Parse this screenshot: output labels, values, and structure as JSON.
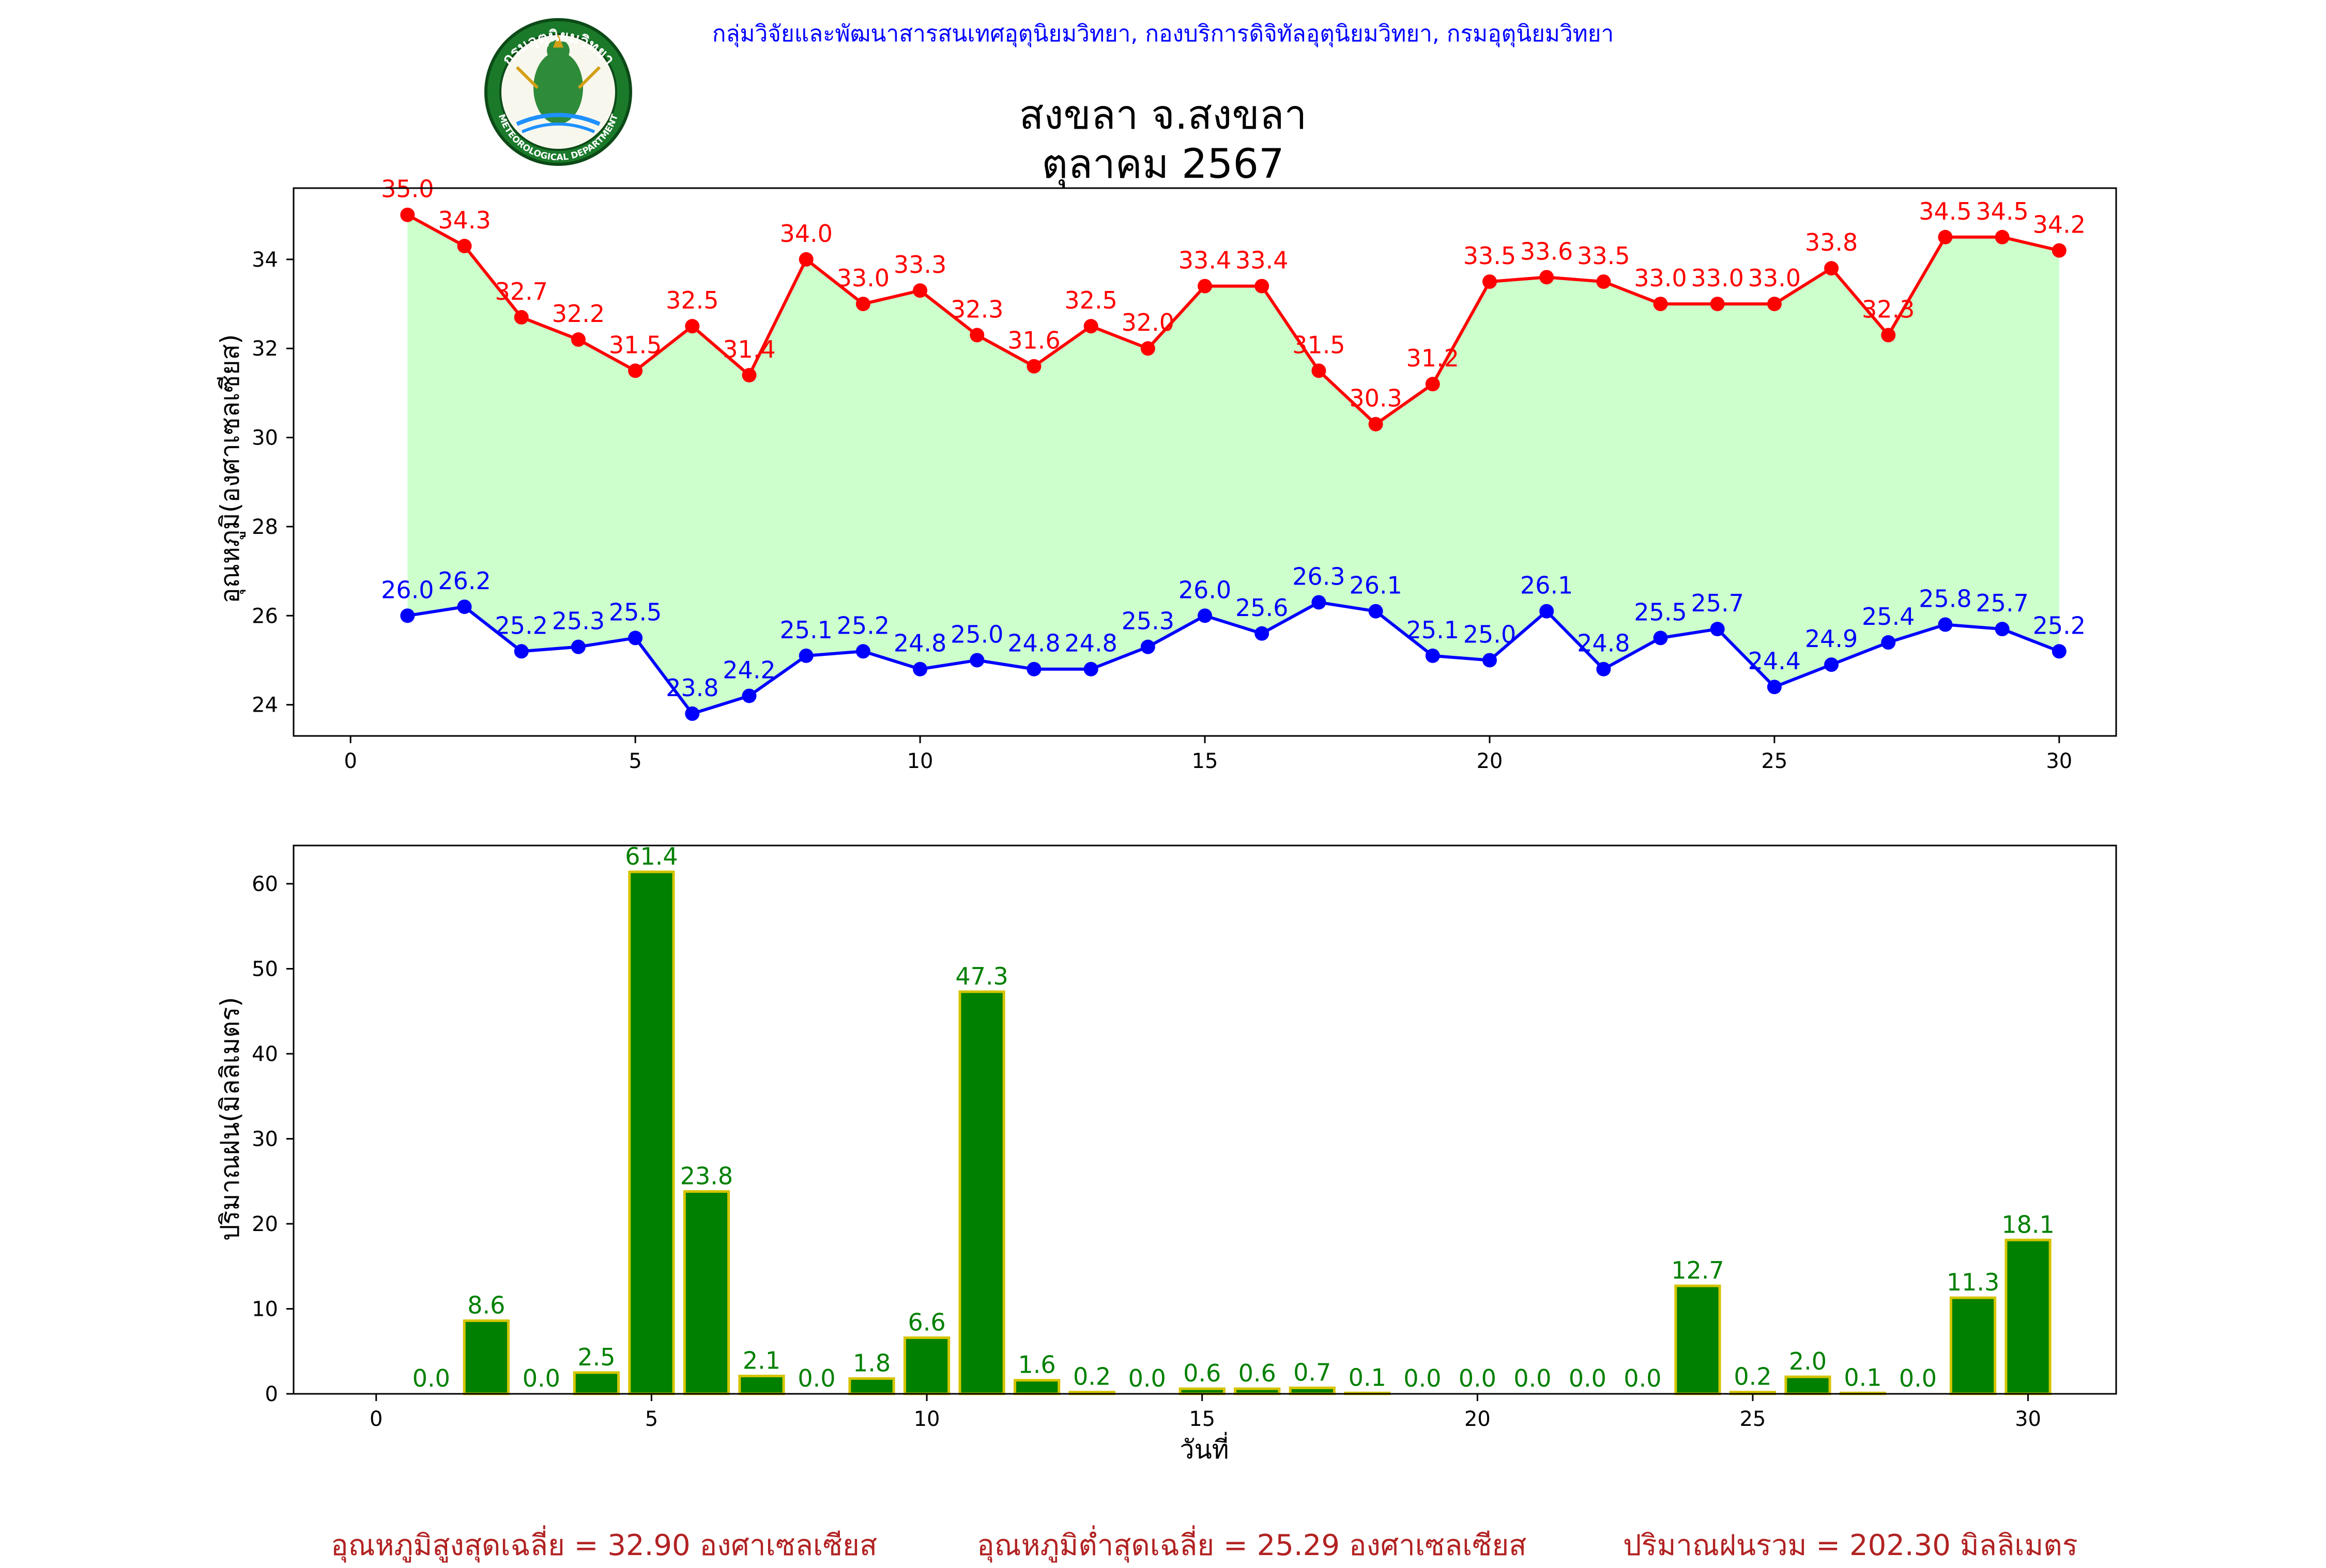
{
  "header": {
    "agency": "กลุ่มวิจัยและพัฒนาสารสนเทศอุตุนิยมวิทยา, กองบริการดิจิทัลอุตุนิยมวิทยา, กรมอุตุนิยมวิทยา",
    "title_line1": "สงขลา จ.สงขลา",
    "title_line2": "ตุลาคม 2567",
    "logo_top_text": "กรมอุตุนิยมวิทยา",
    "logo_bottom_text": "METEOROLOGICAL DEPARTMENT"
  },
  "summary": {
    "avg_max": "อุณหภูมิสูงสุดเฉลี่ย = 32.90 องศาเซลเซียส",
    "avg_min": "อุณหภูมิต่ำสุดเฉลี่ย = 25.29 องศาเซลเซียส",
    "total_rain": "ปริมาณฝนรวม = 202.30 มิลลิเมตร"
  },
  "colors": {
    "max_line": "#ff0000",
    "min_line": "#0000ff",
    "fill": "#ccffcc",
    "bar": "#008000",
    "bar_edge": "#d4c400",
    "bar_label": "#008000",
    "agency_text": "#0000ff",
    "summary_text": "#b22222"
  },
  "chart_data": [
    {
      "type": "line",
      "ylabel": "อุณหภูมิ(องศาเซลเซียส)",
      "xlim": [
        -1,
        31
      ],
      "ylim": [
        23.3,
        35.6
      ],
      "xticks": [
        0,
        5,
        10,
        15,
        20,
        25,
        30
      ],
      "yticks": [
        24,
        26,
        28,
        30,
        32,
        34
      ],
      "x": [
        1,
        2,
        3,
        4,
        5,
        6,
        7,
        8,
        9,
        10,
        11,
        12,
        13,
        14,
        15,
        16,
        17,
        18,
        19,
        20,
        21,
        22,
        23,
        24,
        25,
        26,
        27,
        28,
        29,
        30
      ],
      "series": [
        {
          "key": "max",
          "values": [
            35.0,
            34.3,
            32.7,
            32.2,
            31.5,
            32.5,
            31.4,
            34.0,
            33.0,
            33.3,
            32.3,
            31.6,
            32.5,
            32.0,
            33.4,
            33.4,
            31.5,
            30.3,
            31.2,
            33.5,
            33.6,
            33.5,
            33.0,
            33.0,
            33.0,
            33.8,
            32.3,
            34.5,
            34.5,
            34.2
          ]
        },
        {
          "key": "min",
          "values": [
            26.0,
            26.2,
            25.2,
            25.3,
            25.5,
            23.8,
            24.2,
            25.1,
            25.2,
            24.8,
            25.0,
            24.8,
            24.8,
            25.3,
            26.0,
            25.6,
            26.3,
            26.1,
            25.1,
            25.0,
            26.1,
            24.8,
            25.5,
            25.7,
            24.4,
            24.9,
            25.4,
            25.8,
            25.7,
            25.2
          ]
        }
      ],
      "fill_between": true
    },
    {
      "type": "bar",
      "xlabel": "วันที่",
      "ylabel": "ปริมาณฝน(มิลลิเมตร)",
      "xlim": [
        -1.5,
        31.6
      ],
      "ylim": [
        0,
        64.5
      ],
      "xticks": [
        0,
        5,
        10,
        15,
        20,
        25,
        30
      ],
      "yticks": [
        0,
        10,
        20,
        30,
        40,
        50,
        60
      ],
      "x": [
        1,
        2,
        3,
        4,
        5,
        6,
        7,
        8,
        9,
        10,
        11,
        12,
        13,
        14,
        15,
        16,
        17,
        18,
        19,
        20,
        21,
        22,
        23,
        24,
        25,
        26,
        27,
        28,
        29,
        30
      ],
      "values": [
        0.0,
        8.6,
        0.0,
        2.5,
        61.4,
        23.8,
        2.1,
        0.0,
        1.8,
        6.6,
        47.3,
        1.6,
        0.2,
        0.0,
        0.6,
        0.6,
        0.7,
        0.1,
        0.0,
        0.0,
        0.0,
        0.0,
        0.0,
        12.7,
        0.2,
        2.0,
        0.1,
        0.0,
        11.3,
        18.1
      ]
    }
  ]
}
